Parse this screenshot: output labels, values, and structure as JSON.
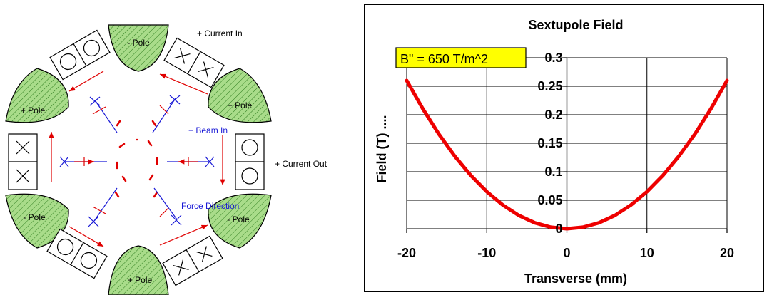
{
  "diagram": {
    "labels": {
      "current_in": "+ Current In",
      "current_out": "+ Current Out",
      "beam_in": "+ Beam In",
      "force_direction": "Force Direction",
      "pole_top": "- Pole",
      "pole_upper_right": "+ Pole",
      "pole_lower_right": "- Pole",
      "pole_bottom": "+ Pole",
      "pole_lower_left": "- Pole",
      "pole_upper_left": "+ Pole"
    },
    "colors": {
      "pole_fill": "#9bd37d",
      "force_arrow": "#e00000",
      "field_vector": "#1a1ad6",
      "outline": "#000000"
    }
  },
  "chart_data": {
    "type": "line",
    "title": "Sextupole Field",
    "annotation": "B\" = 650 T/m^2",
    "xlabel": "Transverse (mm)",
    "ylabel": "Field (T) ....",
    "xlim": [
      -20,
      20
    ],
    "ylim": [
      0,
      0.3
    ],
    "xticks": [
      "-20",
      "-10",
      "0",
      "10",
      "20"
    ],
    "yticks": [
      "0",
      "0.05",
      "0.1",
      "0.15",
      "0.2",
      "0.25",
      "0.3"
    ],
    "grid": true,
    "line_color": "#ee0000",
    "series": [
      {
        "x": [
          -20,
          -18,
          -16,
          -14,
          -12,
          -10,
          -8,
          -6,
          -4,
          -2,
          0,
          2,
          4,
          6,
          8,
          10,
          12,
          14,
          16,
          18,
          20
        ],
        "values": [
          0.26,
          0.2106,
          0.1664,
          0.1274,
          0.0936,
          0.065,
          0.0416,
          0.0234,
          0.0104,
          0.0026,
          0,
          0.0026,
          0.0104,
          0.0234,
          0.0416,
          0.065,
          0.0936,
          0.1274,
          0.1664,
          0.2106,
          0.26
        ]
      }
    ]
  }
}
